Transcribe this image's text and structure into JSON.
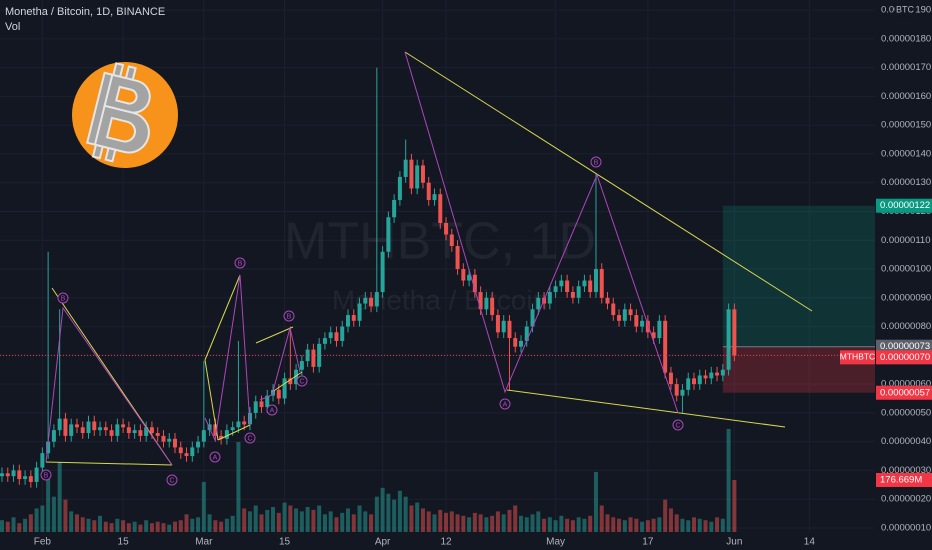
{
  "chart_data": {
    "type": "candlestick",
    "title": "Monetha / Bitcoin, 1D, BINANCE",
    "watermark": "MTHBTC, 1D",
    "watermark_subtitle": "Monetha / Bitcoin",
    "symbol": "MTHBTC",
    "currency": "BTC",
    "up_color": "#26a69a",
    "down_color": "#ef5350",
    "grid": true,
    "categories": [
      null,
      null,
      null,
      null,
      null,
      null,
      null,
      "Feb",
      null,
      null,
      null,
      null,
      null,
      null,
      null,
      null,
      null,
      null,
      null,
      null,
      null,
      "15",
      null,
      null,
      null,
      null,
      null,
      null,
      null,
      null,
      null,
      null,
      null,
      null,
      null,
      "Mar",
      null,
      null,
      null,
      null,
      null,
      null,
      null,
      null,
      null,
      null,
      null,
      null,
      null,
      "15",
      null,
      null,
      null,
      null,
      null,
      null,
      null,
      null,
      null,
      null,
      null,
      null,
      null,
      null,
      null,
      null,
      "Apr",
      null,
      null,
      null,
      null,
      null,
      null,
      null,
      null,
      null,
      null,
      "12",
      null,
      null,
      null,
      null,
      null,
      null,
      null,
      null,
      null,
      null,
      null,
      null,
      null,
      null,
      null,
      null,
      null,
      null,
      "May",
      null,
      null,
      null,
      null,
      null,
      null,
      null,
      null,
      null,
      null,
      null,
      null,
      null,
      null,
      null,
      "17",
      null,
      null,
      null,
      null,
      null,
      null,
      null,
      null,
      null,
      null,
      null,
      null,
      null,
      null,
      "Jun",
      null,
      null,
      null,
      null,
      null,
      null,
      null,
      null,
      null,
      null,
      null,
      null,
      "14",
      null,
      null,
      null,
      null,
      null,
      null,
      null,
      null,
      null,
      null
    ],
    "open": [
      2.8e-07,
      2.9e-07,
      2.8e-07,
      3e-07,
      2.7e-07,
      2.8e-07,
      2.6e-07,
      3.1e-07,
      3.6e-07,
      4e-07,
      4.4e-07,
      4.8e-07,
      4.2e-07,
      4.6e-07,
      4.5e-07,
      4.3e-07,
      4.7e-07,
      4.4e-07,
      4.5e-07,
      4.4e-07,
      4.2e-07,
      4.6e-07,
      4.5e-07,
      4.3e-07,
      4.4e-07,
      4.2e-07,
      4.5e-07,
      4.3e-07,
      4.2e-07,
      4e-07,
      4.1e-07,
      3.8e-07,
      3.6e-07,
      3.5e-07,
      3.8e-07,
      4e-07,
      4.4e-07,
      4.6e-07,
      4.2e-07,
      4.1e-07,
      4.4e-07,
      4.5e-07,
      4.7e-07,
      4.6e-07,
      5e-07,
      5.4e-07,
      5.2e-07,
      5.6e-07,
      5.8e-07,
      5.5e-07,
      6.2e-07,
      6e-07,
      6.5e-07,
      6.8e-07,
      7.2e-07,
      6.6e-07,
      7.4e-07,
      7.6e-07,
      7.8e-07,
      7.5e-07,
      8e-07,
      8.4e-07,
      8.2e-07,
      8.8e-07,
      9e-07,
      8.7e-07,
      9.2e-07,
      1.06e-06,
      1.18e-06,
      1.24e-06,
      1.32e-06,
      1.38e-06,
      1.28e-06,
      1.36e-06,
      1.3e-06,
      1.24e-06,
      1.26e-06,
      1.16e-06,
      1.12e-06,
      1.08e-06,
      1e-06,
      9.6e-07,
      9.8e-07,
      9.2e-07,
      8.6e-07,
      9e-07,
      8.4e-07,
      7.8e-07,
      8.2e-07,
      7.6e-07,
      7.3e-07,
      7.5e-07,
      8e-07,
      8.6e-07,
      9e-07,
      8.8e-07,
      9.2e-07,
      9.4e-07,
      9.6e-07,
      9.2e-07,
      9e-07,
      9.4e-07,
      9.6e-07,
      9.2e-07,
      1e-06,
      9e-07,
      8.8e-07,
      8.4e-07,
      8.2e-07,
      8.6e-07,
      8.4e-07,
      8e-07,
      8.2e-07,
      7.8e-07,
      7.6e-07,
      8.2e-07,
      6.4e-07,
      6e-07,
      5.6e-07,
      5.8e-07,
      6.2e-07,
      6e-07,
      6.3e-07,
      6.2e-07,
      6.4e-07,
      6.3e-07,
      6.5e-07,
      8.6e-07,
      null,
      null,
      null,
      null,
      null,
      null,
      null,
      null,
      null,
      null,
      null,
      null,
      null,
      null,
      null,
      null,
      null,
      null,
      null,
      null,
      null,
      null,
      null
    ],
    "high": [
      3.1e-07,
      3.1e-07,
      3.2e-07,
      3.2e-07,
      3e-07,
      3e-07,
      3.3e-07,
      3.8e-07,
      1.06e-06,
      4.6e-07,
      8.6e-07,
      5e-07,
      4.8e-07,
      4.8e-07,
      4.7e-07,
      4.9e-07,
      4.9e-07,
      4.7e-07,
      4.7e-07,
      4.6e-07,
      4.8e-07,
      4.8e-07,
      4.7e-07,
      4.6e-07,
      4.6e-07,
      4.7e-07,
      4.7e-07,
      4.5e-07,
      4.4e-07,
      4.3e-07,
      4.3e-07,
      4e-07,
      3.8e-07,
      4e-07,
      4.2e-07,
      6.8e-07,
      4.8e-07,
      4.8e-07,
      4.4e-07,
      4.6e-07,
      4.7e-07,
      7.5e-07,
      4.9e-07,
      5.2e-07,
      5.6e-07,
      5.6e-07,
      5.8e-07,
      6e-07,
      6e-07,
      6.4e-07,
      8e-07,
      6.7e-07,
      7e-07,
      7.4e-07,
      7.4e-07,
      7.6e-07,
      7.8e-07,
      8e-07,
      8e-07,
      8.2e-07,
      8.6e-07,
      8.6e-07,
      9e-07,
      9.2e-07,
      9.2e-07,
      1.7e-06,
      1.08e-06,
      1.2e-06,
      1.26e-06,
      1.34e-06,
      1.45e-06,
      1.4e-06,
      1.38e-06,
      1.38e-06,
      1.32e-06,
      1.28e-06,
      1.28e-06,
      1.18e-06,
      1.14e-06,
      1.1e-06,
      1.02e-06,
      1e-06,
      1e-06,
      9.4e-07,
      9.2e-07,
      9.2e-07,
      8.6e-07,
      8.4e-07,
      8.4e-07,
      7.8e-07,
      7.7e-07,
      8.2e-07,
      8.8e-07,
      9.2e-07,
      9.2e-07,
      9.4e-07,
      9.6e-07,
      9.8e-07,
      9.8e-07,
      9.4e-07,
      9.6e-07,
      9.8e-07,
      9.8e-07,
      1.33e-06,
      1.02e-06,
      9.2e-07,
      9e-07,
      8.6e-07,
      8.8e-07,
      8.8e-07,
      8.6e-07,
      8.4e-07,
      8.4e-07,
      8e-07,
      8.4e-07,
      8.4e-07,
      6.6e-07,
      6.2e-07,
      6e-07,
      6.4e-07,
      6.4e-07,
      6.5e-07,
      6.5e-07,
      6.6e-07,
      6.6e-07,
      6.7e-07,
      8.8e-07,
      8.8e-07,
      null,
      null,
      null,
      null,
      null,
      null,
      null,
      null,
      null,
      null,
      null,
      null,
      null,
      null,
      null,
      null,
      null,
      null,
      null,
      null,
      null,
      null,
      null
    ],
    "low": [
      2.6e-07,
      2.6e-07,
      2.6e-07,
      2.5e-07,
      2.5e-07,
      2.4e-07,
      2.4e-07,
      2.9e-07,
      3.4e-07,
      3.8e-07,
      4.2e-07,
      4e-07,
      4e-07,
      4.3e-07,
      4.1e-07,
      4.1e-07,
      4.2e-07,
      4.2e-07,
      4.2e-07,
      4e-07,
      4e-07,
      4.3e-07,
      4.1e-07,
      4.1e-07,
      4e-07,
      4e-07,
      4.1e-07,
      4e-07,
      3.8e-07,
      3.8e-07,
      3.6e-07,
      3.4e-07,
      3.3e-07,
      3.3e-07,
      3.6e-07,
      3.8e-07,
      4.2e-07,
      4e-07,
      3.9e-07,
      3.9e-07,
      4.2e-07,
      4.3e-07,
      4.4e-07,
      4.4e-07,
      4.8e-07,
      5e-07,
      5e-07,
      5.4e-07,
      5.3e-07,
      5.3e-07,
      5.8e-07,
      5.8e-07,
      6.3e-07,
      6.6e-07,
      6.4e-07,
      6.4e-07,
      7.2e-07,
      7.4e-07,
      7.3e-07,
      7.3e-07,
      7.8e-07,
      8e-07,
      8e-07,
      8.6e-07,
      8.5e-07,
      8.5e-07,
      9e-07,
      1.04e-06,
      1.16e-06,
      1.22e-06,
      1.3e-06,
      1.26e-06,
      1.26e-06,
      1.28e-06,
      1.22e-06,
      1.22e-06,
      1.14e-06,
      1.1e-06,
      1.06e-06,
      9.8e-07,
      9.4e-07,
      9.4e-07,
      9e-07,
      8.4e-07,
      8.4e-07,
      8.2e-07,
      7.6e-07,
      7.6e-07,
      5.8e-07,
      7.1e-07,
      7.1e-07,
      7.3e-07,
      7.8e-07,
      8.4e-07,
      8.6e-07,
      8.6e-07,
      9e-07,
      9.2e-07,
      9e-07,
      8.8e-07,
      8.8e-07,
      9.2e-07,
      9e-07,
      9e-07,
      8.8e-07,
      8.6e-07,
      8.2e-07,
      8e-07,
      8e-07,
      8.2e-07,
      7.8e-07,
      7.8e-07,
      7.6e-07,
      7.4e-07,
      7.4e-07,
      6.2e-07,
      5.8e-07,
      5.4e-07,
      5e-07,
      5.6e-07,
      5.8e-07,
      5.8e-07,
      6e-07,
      6e-07,
      6.1e-07,
      6.1e-07,
      6.3e-07,
      6.8e-07,
      null,
      null,
      null,
      null,
      null,
      null,
      null,
      null,
      null,
      null,
      null,
      null,
      null,
      null,
      null,
      null,
      null,
      null,
      null,
      null,
      null,
      null,
      null
    ],
    "close": [
      2.9e-07,
      2.8e-07,
      3e-07,
      2.7e-07,
      2.8e-07,
      2.6e-07,
      3.1e-07,
      3.6e-07,
      4e-07,
      4.4e-07,
      4.8e-07,
      4.2e-07,
      4.6e-07,
      4.5e-07,
      4.3e-07,
      4.7e-07,
      4.4e-07,
      4.5e-07,
      4.4e-07,
      4.2e-07,
      4.6e-07,
      4.5e-07,
      4.3e-07,
      4.4e-07,
      4.2e-07,
      4.5e-07,
      4.3e-07,
      4.2e-07,
      4e-07,
      4.1e-07,
      3.8e-07,
      3.6e-07,
      3.5e-07,
      3.8e-07,
      4e-07,
      4.4e-07,
      4.6e-07,
      4.2e-07,
      4.1e-07,
      4.4e-07,
      4.5e-07,
      4.7e-07,
      4.6e-07,
      5e-07,
      5.4e-07,
      5.2e-07,
      5.6e-07,
      5.8e-07,
      5.5e-07,
      6.2e-07,
      6e-07,
      6.5e-07,
      6.8e-07,
      7.2e-07,
      6.6e-07,
      7.4e-07,
      7.6e-07,
      7.8e-07,
      7.5e-07,
      8e-07,
      8.4e-07,
      8.2e-07,
      8.8e-07,
      9e-07,
      8.7e-07,
      9.2e-07,
      1.06e-06,
      1.18e-06,
      1.24e-06,
      1.32e-06,
      1.38e-06,
      1.28e-06,
      1.36e-06,
      1.3e-06,
      1.24e-06,
      1.26e-06,
      1.16e-06,
      1.12e-06,
      1.08e-06,
      1e-06,
      9.6e-07,
      9.8e-07,
      9.2e-07,
      8.6e-07,
      9e-07,
      8.4e-07,
      7.8e-07,
      8.2e-07,
      7.6e-07,
      7.3e-07,
      7.5e-07,
      8e-07,
      8.6e-07,
      9e-07,
      8.8e-07,
      9.2e-07,
      9.4e-07,
      9.6e-07,
      9.2e-07,
      9e-07,
      9.4e-07,
      9.6e-07,
      9.2e-07,
      1e-06,
      9e-07,
      8.8e-07,
      8.4e-07,
      8.2e-07,
      8.6e-07,
      8.4e-07,
      8e-07,
      8.2e-07,
      7.8e-07,
      7.6e-07,
      8.2e-07,
      6.4e-07,
      6e-07,
      5.6e-07,
      5.8e-07,
      6.2e-07,
      6e-07,
      6.3e-07,
      6.2e-07,
      6.4e-07,
      6.3e-07,
      6.5e-07,
      8.6e-07,
      7e-07,
      null,
      null,
      null,
      null,
      null,
      null,
      null,
      null,
      null,
      null,
      null,
      null,
      null,
      null,
      null,
      null,
      null,
      null,
      null,
      null,
      null,
      null,
      null
    ],
    "volume": {
      "name": "Vol",
      "axis": "y2",
      "values": [
        40,
        35,
        50,
        30,
        45,
        60,
        80,
        90,
        200,
        120,
        238,
        110,
        70,
        60,
        50,
        45,
        40,
        55,
        35,
        30,
        45,
        40,
        30,
        35,
        25,
        40,
        30,
        35,
        30,
        25,
        35,
        40,
        60,
        45,
        50,
        170,
        60,
        40,
        35,
        45,
        55,
        306,
        80,
        70,
        90,
        60,
        75,
        85,
        65,
        100,
        90,
        80,
        70,
        85,
        75,
        90,
        60,
        70,
        50,
        65,
        80,
        60,
        90,
        70,
        60,
        120,
        150,
        130,
        110,
        140,
        120,
        90,
        100,
        80,
        70,
        60,
        75,
        65,
        70,
        60,
        55,
        50,
        65,
        60,
        50,
        55,
        70,
        60,
        75,
        90,
        55,
        50,
        60,
        70,
        45,
        50,
        40,
        55,
        45,
        40,
        50,
        45,
        55,
        204,
        90,
        60,
        50,
        45,
        40,
        50,
        45,
        35,
        40,
        45,
        50,
        110,
        80,
        60,
        45,
        40,
        50,
        45,
        40,
        35,
        50,
        45,
        350,
        176.669,
        null,
        null,
        null,
        null,
        null,
        null,
        null,
        null,
        null,
        null,
        null,
        null,
        null,
        null,
        null,
        null,
        null,
        null,
        null,
        null,
        null,
        null,
        null
      ]
    },
    "volume_tag": {
      "value": 176.669,
      "label": "176.669M"
    },
    "ylim": [
      8.6e-08,
      1.935e-06
    ],
    "y2lim": [
      0,
      900
    ],
    "yticks": [
      {
        "value": 1e-07,
        "label": "0.00000010"
      },
      {
        "value": 2e-07,
        "label": "0.00000020"
      },
      {
        "value": 3e-07,
        "label": "0.00000030"
      },
      {
        "value": 4e-07,
        "label": "0.00000040"
      },
      {
        "value": 5e-07,
        "label": "0.00000050"
      },
      {
        "value": 6e-07,
        "label": "0.00000060"
      },
      {
        "value": 7e-07,
        "label": "0.00000070"
      },
      {
        "value": 8e-07,
        "label": "0.00000080"
      },
      {
        "value": 9e-07,
        "label": "0.00000090"
      },
      {
        "value": 1e-06,
        "label": "0.00000100"
      },
      {
        "value": 1.1e-06,
        "label": "0.00000110"
      },
      {
        "value": 1.2e-06,
        "label": "0.00000120"
      },
      {
        "value": 1.3e-06,
        "label": "0.00000130"
      },
      {
        "value": 1.4e-06,
        "label": "0.00000140"
      },
      {
        "value": 1.5e-06,
        "label": "0.00000150"
      },
      {
        "value": 1.6e-06,
        "label": "0.00000160"
      },
      {
        "value": 1.7e-06,
        "label": "0.00000170"
      },
      {
        "value": 1.8e-06,
        "label": "0.00000180"
      },
      {
        "value": 1.9e-06,
        "label": "0.00000190"
      }
    ],
    "last_price": {
      "value": 7e-07,
      "label": "0.00000070"
    },
    "position": {
      "target": {
        "value": 1.22e-06,
        "label": "0.00000122"
      },
      "entry": {
        "value": 7.3e-07,
        "label": "0.00000073"
      },
      "stop": {
        "value": 5.7e-07,
        "label": "0.00000057"
      }
    },
    "wave_labels": [
      "B",
      "B",
      "C",
      "A",
      "B",
      "C",
      "A",
      "B",
      "C",
      "A",
      "B",
      "C"
    ]
  }
}
